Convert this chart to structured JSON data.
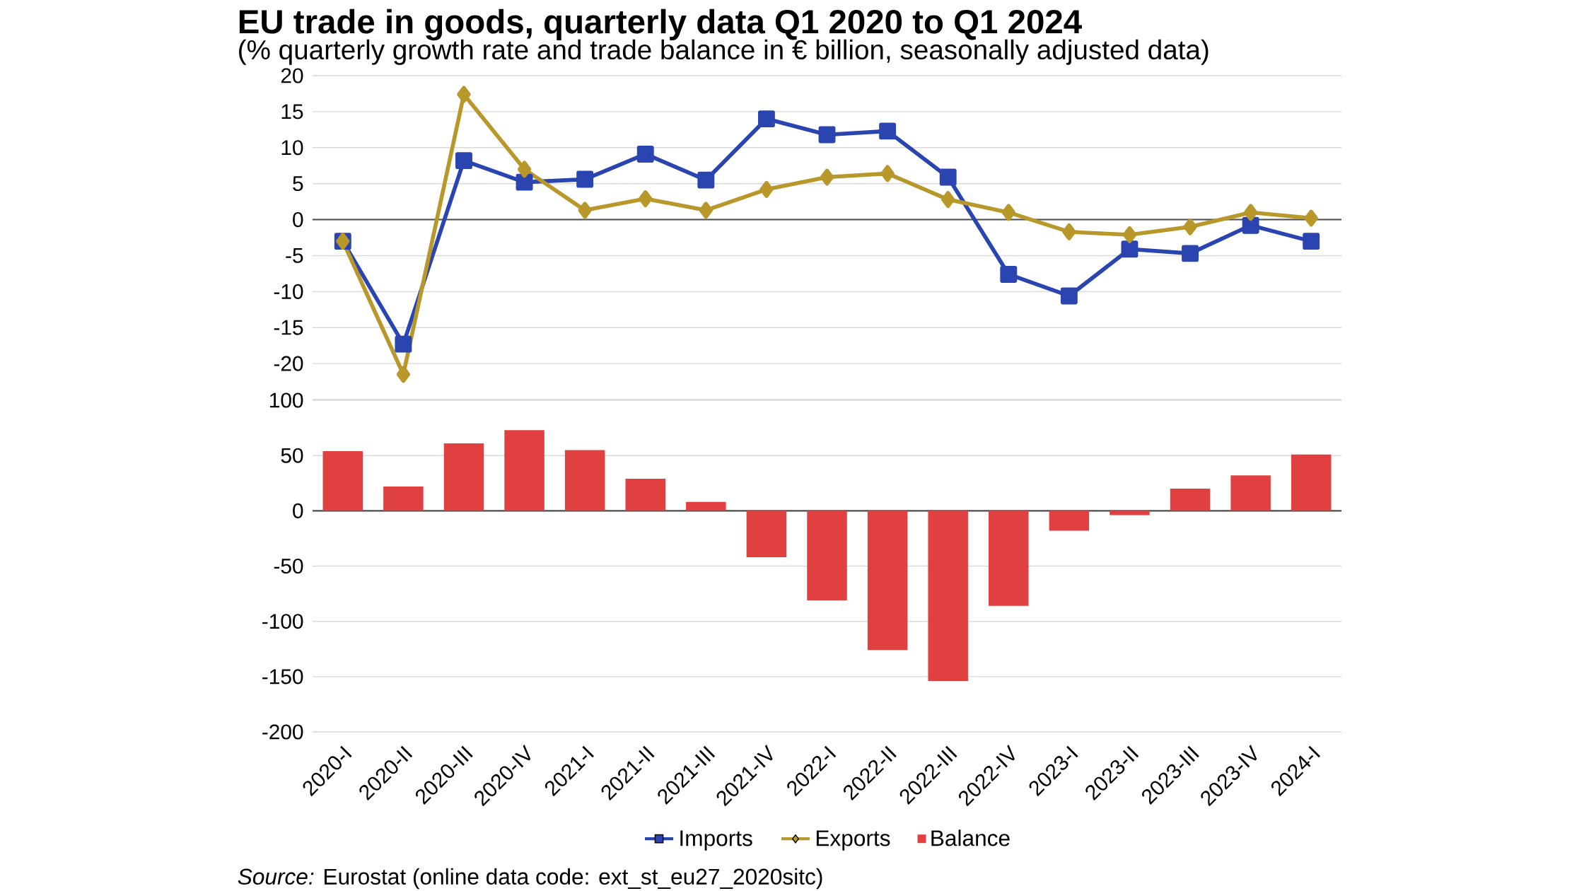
{
  "chart_data": [
    {
      "type": "line",
      "title": "EU trade in goods, quarterly data Q1 2020 to Q1 2024",
      "subtitle": "(% quarterly growth rate and trade balance in € billion, seasonally adjusted data)",
      "categories": [
        null,
        null,
        null,
        null,
        null,
        null,
        null,
        null,
        null,
        null,
        null,
        null,
        null,
        null,
        null,
        null,
        null
      ],
      "series": [
        {
          "name": "Imports",
          "color": "#2a44b0",
          "marker": "square",
          "values": [
            -3.0,
            -17.3,
            8.2,
            5.2,
            5.6,
            9.1,
            5.5,
            14.0,
            11.8,
            12.3,
            5.9,
            -7.6,
            -10.6,
            -4.1,
            -4.7,
            -0.8,
            -3.0
          ]
        },
        {
          "name": "Exports",
          "color": "#b8982a",
          "marker": "diamond",
          "values": [
            -3.0,
            -21.5,
            17.4,
            7.0,
            1.3,
            2.9,
            1.3,
            4.2,
            5.9,
            6.4,
            2.8,
            1.0,
            -1.7,
            -2.1,
            -1.0,
            1.0,
            0.2
          ]
        }
      ],
      "ylim": [
        -25,
        20
      ],
      "yticks": [
        {
          "value": -25,
          "label": null
        },
        -20,
        -15,
        -10,
        -5,
        0,
        5,
        10,
        15,
        20
      ],
      "grid": "y",
      "legend": "bottom",
      "tick_labels": "y"
    },
    {
      "type": "bar",
      "categories": [
        "2020-I",
        "2020-II",
        "2020-III",
        "2020-IV",
        "2021-I",
        "2021-II",
        "2021-III",
        "2021-IV",
        "2022-I",
        "2022-II",
        "2022-III",
        "2022-IV",
        "2023-I",
        "2023-II",
        "2023-III",
        "2023-IV",
        "2024-I"
      ],
      "series": [
        {
          "name": "Balance",
          "color": "#e04040",
          "values": [
            54,
            22,
            61,
            73,
            55,
            29,
            8,
            -42,
            -81,
            -126,
            -154,
            -86,
            -18,
            -4,
            20,
            32,
            51
          ]
        }
      ],
      "ylim": [
        -200,
        100
      ],
      "yticks": [
        -200,
        -150,
        -100,
        -50,
        0,
        50,
        100
      ],
      "grid": "y",
      "legend": "bottom",
      "annotations": [
        "*Source:* Eurostat (online data code: ext_st_eu27_2020sitc)"
      ]
    }
  ]
}
